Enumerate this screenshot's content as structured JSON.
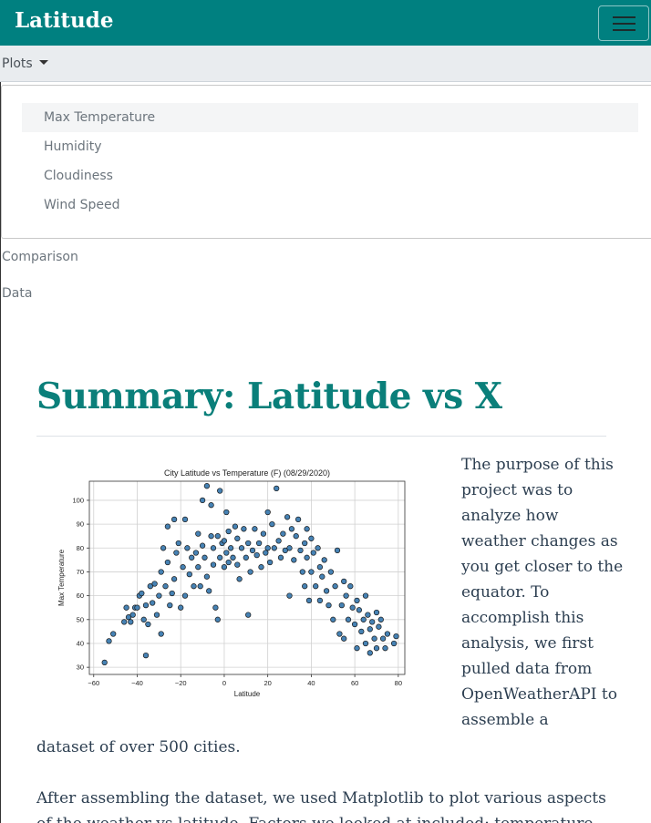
{
  "nav": {
    "brand": "Latitude",
    "toggler_icon": "hamburger-icon",
    "color": "#008080"
  },
  "menu": {
    "toggle_label": "Plots",
    "items": [
      {
        "label": "Max Temperature",
        "active": true
      },
      {
        "label": "Humidity",
        "active": false
      },
      {
        "label": "Cloudiness",
        "active": false
      },
      {
        "label": "Wind Speed",
        "active": false
      }
    ],
    "links": [
      "Comparison",
      "Data"
    ]
  },
  "main": {
    "title": "Summary: Latitude vs X",
    "title_color": "#0a7f7a",
    "intro_side": "The purpose of this project was to analyze how weather changes as you get closer to the equator. To accomplish this analysis, we first pulled data from OpenWeatherAPI to assemble a",
    "intro_cont": "dataset of over 500 cities.",
    "para2": "After assembling the dataset, we used Matplotlib to plot various aspects of the weather vs latitude. Factors we looked at included: temperature,"
  },
  "chart_data": {
    "type": "scatter",
    "title": "City Latitude vs Temperature (F) (08/29/2020)",
    "xlabel": "Latitude",
    "ylabel": "Max Temperature",
    "xlim": [
      -62,
      83
    ],
    "ylim": [
      27,
      108
    ],
    "xticks": [
      -60,
      -40,
      -20,
      0,
      20,
      40,
      60,
      80
    ],
    "yticks": [
      30,
      40,
      50,
      60,
      70,
      80,
      90,
      100
    ],
    "grid": true,
    "marker_color": "#4682b4",
    "points": [
      [
        -55,
        32
      ],
      [
        -53,
        41
      ],
      [
        -51,
        44
      ],
      [
        -46,
        49
      ],
      [
        -45,
        55
      ],
      [
        -44,
        51
      ],
      [
        -43,
        49
      ],
      [
        -42,
        52
      ],
      [
        -41,
        55
      ],
      [
        -40,
        55
      ],
      [
        -39,
        60
      ],
      [
        -38,
        61
      ],
      [
        -37,
        50
      ],
      [
        -36,
        35
      ],
      [
        -36,
        56
      ],
      [
        -35,
        48
      ],
      [
        -34,
        64
      ],
      [
        -33,
        57
      ],
      [
        -32,
        65
      ],
      [
        -31,
        52
      ],
      [
        -30,
        60
      ],
      [
        -29,
        44
      ],
      [
        -29,
        70
      ],
      [
        -28,
        80
      ],
      [
        -27,
        64
      ],
      [
        -26,
        74
      ],
      [
        -26,
        89
      ],
      [
        -25,
        56
      ],
      [
        -24,
        61
      ],
      [
        -23,
        67
      ],
      [
        -23,
        92
      ],
      [
        -22,
        78
      ],
      [
        -21,
        82
      ],
      [
        -20,
        55
      ],
      [
        -19,
        72
      ],
      [
        -18,
        60
      ],
      [
        -18,
        92
      ],
      [
        -17,
        80
      ],
      [
        -16,
        69
      ],
      [
        -15,
        76
      ],
      [
        -14,
        64
      ],
      [
        -13,
        78
      ],
      [
        -12,
        72
      ],
      [
        -12,
        86
      ],
      [
        -11,
        64
      ],
      [
        -10,
        81
      ],
      [
        -10,
        100
      ],
      [
        -9,
        76
      ],
      [
        -8,
        68
      ],
      [
        -8,
        106
      ],
      [
        -7,
        62
      ],
      [
        -6,
        85
      ],
      [
        -6,
        98
      ],
      [
        -5,
        73
      ],
      [
        -5,
        80
      ],
      [
        -4,
        55
      ],
      [
        -3,
        50
      ],
      [
        -3,
        85
      ],
      [
        -2,
        76
      ],
      [
        -2,
        104
      ],
      [
        -1,
        82
      ],
      [
        0,
        72
      ],
      [
        0,
        83
      ],
      [
        1,
        78
      ],
      [
        1,
        95
      ],
      [
        2,
        74
      ],
      [
        2,
        87
      ],
      [
        3,
        80
      ],
      [
        4,
        76
      ],
      [
        5,
        89
      ],
      [
        6,
        73
      ],
      [
        6,
        84
      ],
      [
        7,
        67
      ],
      [
        8,
        80
      ],
      [
        9,
        88
      ],
      [
        10,
        76
      ],
      [
        11,
        52
      ],
      [
        11,
        82
      ],
      [
        12,
        70
      ],
      [
        13,
        79
      ],
      [
        14,
        88
      ],
      [
        15,
        77
      ],
      [
        16,
        82
      ],
      [
        17,
        72
      ],
      [
        18,
        86
      ],
      [
        19,
        78
      ],
      [
        20,
        95
      ],
      [
        20,
        80
      ],
      [
        21,
        74
      ],
      [
        22,
        90
      ],
      [
        23,
        80
      ],
      [
        24,
        105
      ],
      [
        25,
        83
      ],
      [
        26,
        76
      ],
      [
        27,
        86
      ],
      [
        28,
        79
      ],
      [
        29,
        93
      ],
      [
        30,
        80
      ],
      [
        30,
        60
      ],
      [
        31,
        88
      ],
      [
        32,
        75
      ],
      [
        33,
        85
      ],
      [
        34,
        92
      ],
      [
        35,
        79
      ],
      [
        36,
        70
      ],
      [
        37,
        82
      ],
      [
        37,
        64
      ],
      [
        38,
        88
      ],
      [
        38,
        76
      ],
      [
        39,
        58
      ],
      [
        40,
        84
      ],
      [
        40,
        70
      ],
      [
        41,
        78
      ],
      [
        42,
        64
      ],
      [
        43,
        80
      ],
      [
        44,
        72
      ],
      [
        44,
        58
      ],
      [
        45,
        68
      ],
      [
        46,
        75
      ],
      [
        47,
        62
      ],
      [
        48,
        56
      ],
      [
        49,
        70
      ],
      [
        50,
        50
      ],
      [
        51,
        64
      ],
      [
        52,
        79
      ],
      [
        53,
        44
      ],
      [
        54,
        56
      ],
      [
        55,
        66
      ],
      [
        55,
        42
      ],
      [
        56,
        60
      ],
      [
        57,
        50
      ],
      [
        58,
        64
      ],
      [
        59,
        55
      ],
      [
        60,
        48
      ],
      [
        61,
        38
      ],
      [
        61,
        58
      ],
      [
        62,
        54
      ],
      [
        63,
        45
      ],
      [
        64,
        50
      ],
      [
        65,
        60
      ],
      [
        65,
        40
      ],
      [
        66,
        52
      ],
      [
        67,
        46
      ],
      [
        67,
        36
      ],
      [
        68,
        49
      ],
      [
        69,
        42
      ],
      [
        70,
        53
      ],
      [
        70,
        38
      ],
      [
        71,
        47
      ],
      [
        72,
        50
      ],
      [
        73,
        42
      ],
      [
        74,
        38
      ],
      [
        75,
        44
      ],
      [
        78,
        40
      ],
      [
        79,
        43
      ]
    ]
  }
}
